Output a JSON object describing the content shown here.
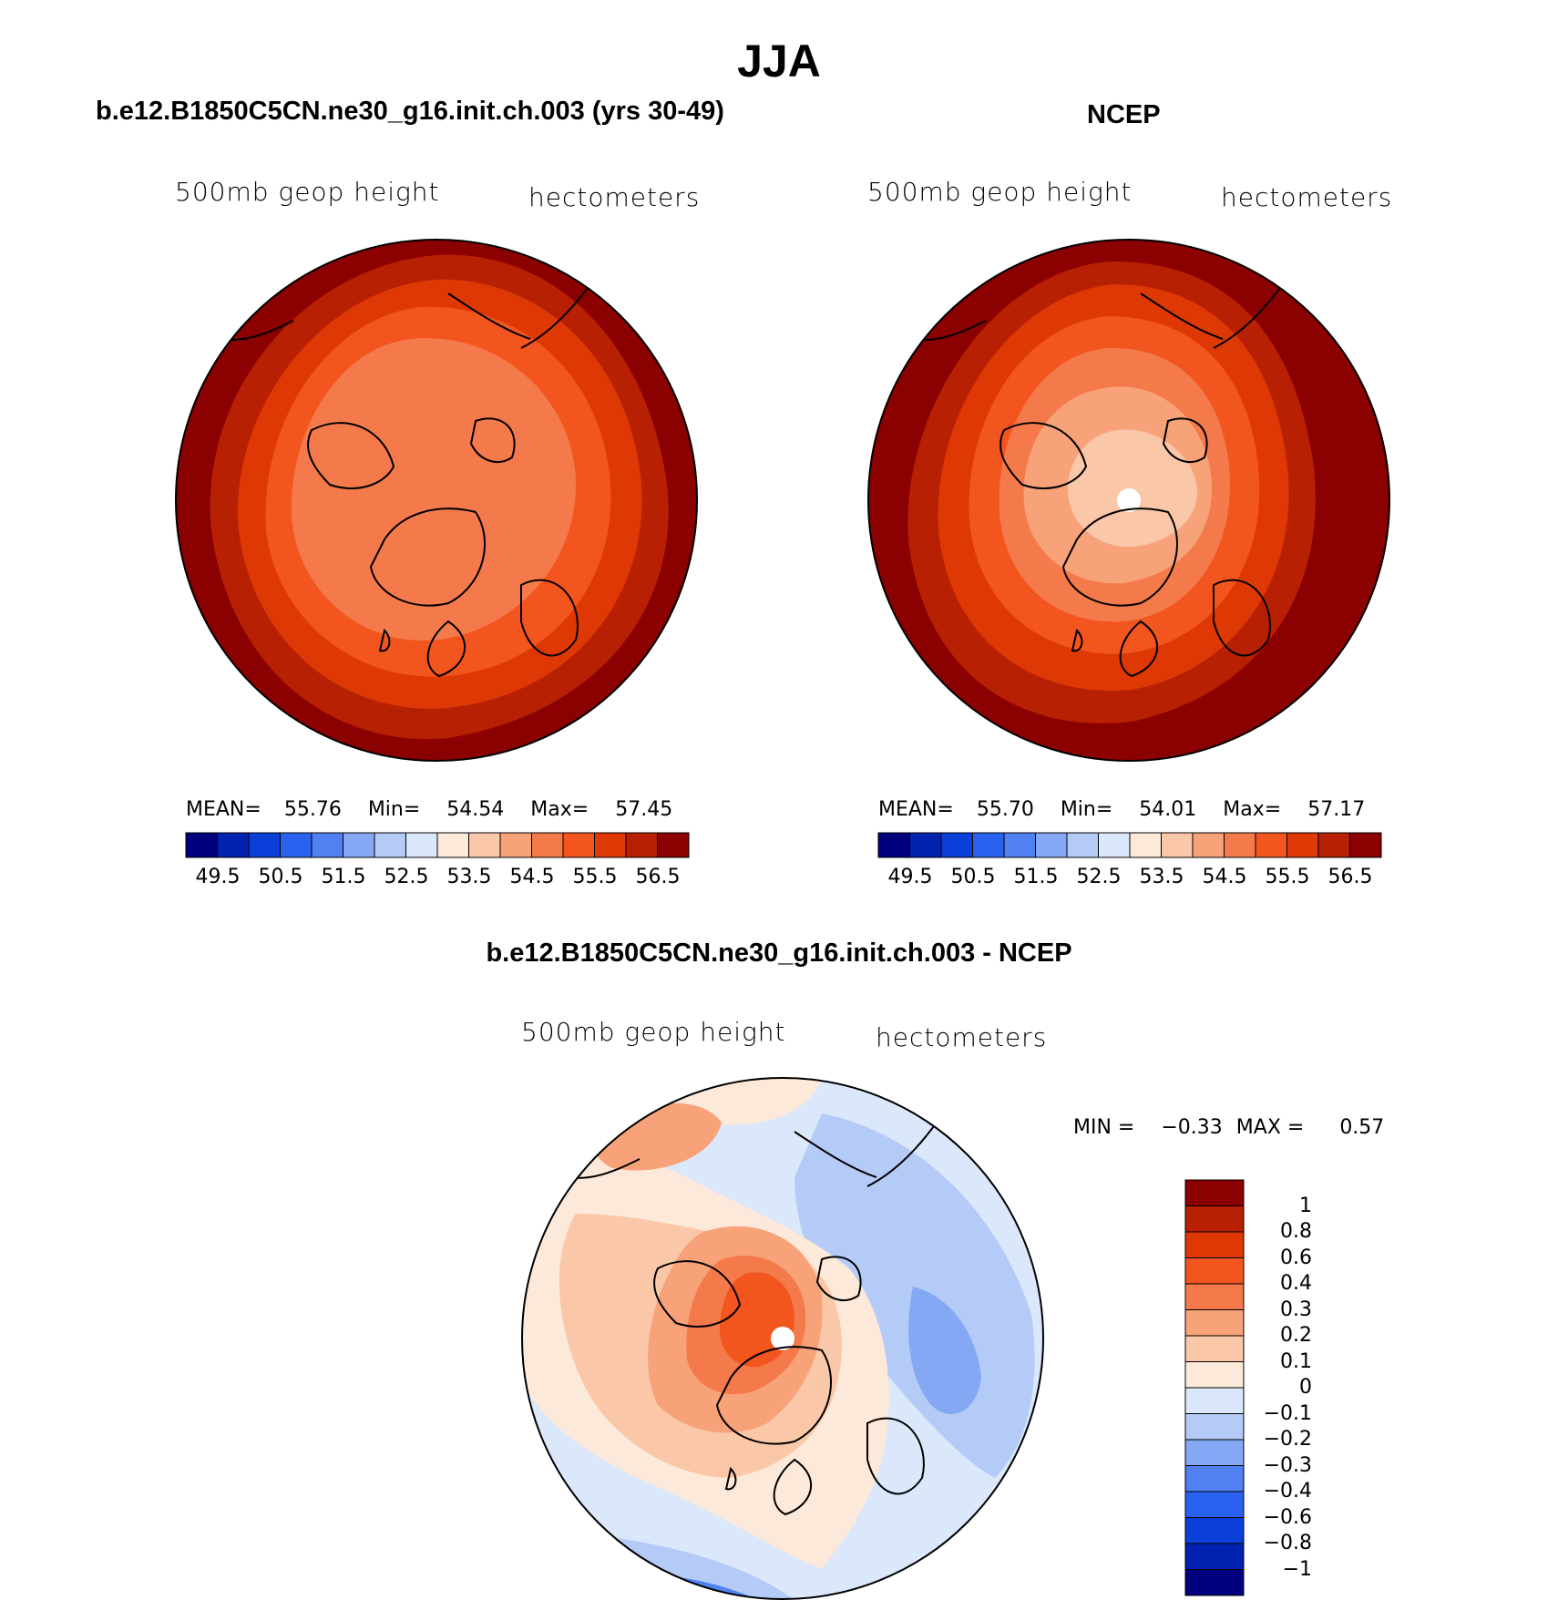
{
  "figure": {
    "title": "JJA"
  },
  "panels": [
    {
      "id": "model",
      "title": "b.e12.B1850C5CN.ne30_g16.init.ch.003 (yrs 30-49)",
      "var_label": "500mb geop height",
      "units_label": "hectometers",
      "stats": {
        "mean_label": "MEAN=",
        "mean": "55.76",
        "min_label": "Min=",
        "min": "54.54",
        "max_label": "Max=",
        "max": "57.45"
      },
      "colorbar_ticks": [
        "49.5",
        "50.5",
        "51.5",
        "52.5",
        "53.5",
        "54.5",
        "55.5",
        "56.5"
      ]
    },
    {
      "id": "obs",
      "title": "NCEP",
      "var_label": "500mb geop height",
      "units_label": "hectometers",
      "stats": {
        "mean_label": "MEAN=",
        "mean": "55.70",
        "min_label": "Min=",
        "min": "54.01",
        "max_label": "Max=",
        "max": "57.17"
      },
      "colorbar_ticks": [
        "49.5",
        "50.5",
        "51.5",
        "52.5",
        "53.5",
        "54.5",
        "55.5",
        "56.5"
      ]
    },
    {
      "id": "diff",
      "title": "b.e12.B1850C5CN.ne30_g16.init.ch.003 - NCEP",
      "var_label": "500mb geop height",
      "units_label": "hectometers",
      "stats": {
        "min_label": "MIN =",
        "min": "−0.33",
        "max_label": "MAX =",
        "max": "0.57"
      },
      "colorbar_ticks": [
        "1",
        "0.8",
        "0.6",
        "0.4",
        "0.3",
        "0.2",
        "0.1",
        "0",
        "−0.1",
        "−0.2",
        "−0.3",
        "−0.4",
        "−0.6",
        "−0.8",
        "−1"
      ]
    }
  ],
  "colors": {
    "abs_scale": [
      "#00007f",
      "#0022b0",
      "#0a3fd9",
      "#2a62f0",
      "#5080f2",
      "#85a8f5",
      "#b4cbf8",
      "#dbe8fb",
      "#fde9d9",
      "#fbc7a9",
      "#f8a27a",
      "#f57a4b",
      "#f2551e",
      "#de3904",
      "#b82003",
      "#8b0000"
    ],
    "diff_scale": [
      "#8b0000",
      "#b82003",
      "#de3904",
      "#f2551e",
      "#f57a4b",
      "#f8a27a",
      "#fbc7a9",
      "#fde9d9",
      "#dbe8fb",
      "#b4cbf8",
      "#85a8f5",
      "#5080f2",
      "#2a62f0",
      "#0a3fd9",
      "#0022b0",
      "#00007f"
    ]
  }
}
